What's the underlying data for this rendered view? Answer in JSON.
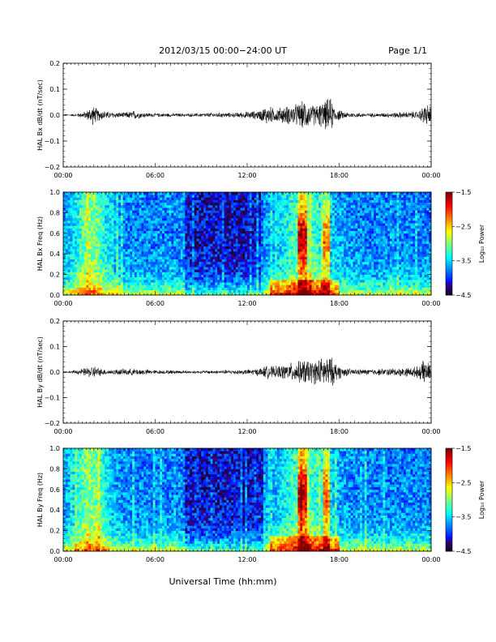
{
  "header": {
    "title": "2012/03/15  00:00−24:00 UT",
    "page": "Page 1/1"
  },
  "footer": {
    "xlabel": "Universal Time (hh:mm)"
  },
  "chart_data": [
    {
      "type": "line",
      "ylabel": "HAL Bx dB/dt (nT/sec)",
      "ylim": [
        -0.2,
        0.2
      ],
      "yticks": [
        0.2,
        0.1,
        0.0,
        -0.1,
        -0.2
      ],
      "ytick_labels": [
        "0.2",
        "0.1",
        "0.0",
        "−0.1",
        "−0.2"
      ],
      "xlim": [
        0,
        24
      ],
      "xtick_labels": [
        "00:00",
        "06:00",
        "12:00",
        "18:00",
        "00:00"
      ],
      "envelope": {
        "x_hours": [
          0,
          0.5,
          1.0,
          1.5,
          1.9,
          2.3,
          3.0,
          4.0,
          4.6,
          5.2,
          6.0,
          7.0,
          8.0,
          9.0,
          10.0,
          11.0,
          12.0,
          12.8,
          13.3,
          13.8,
          14.3,
          14.8,
          15.3,
          15.8,
          16.2,
          16.6,
          17.0,
          17.4,
          17.8,
          18.2,
          18.8,
          19.5,
          20.5,
          21.5,
          22.5,
          23.2,
          23.6,
          24.0
        ],
        "amplitude": [
          0.003,
          0.003,
          0.006,
          0.012,
          0.03,
          0.018,
          0.01,
          0.008,
          0.014,
          0.008,
          0.006,
          0.006,
          0.005,
          0.006,
          0.008,
          0.007,
          0.01,
          0.014,
          0.03,
          0.02,
          0.025,
          0.03,
          0.035,
          0.045,
          0.03,
          0.035,
          0.04,
          0.055,
          0.02,
          0.012,
          0.008,
          0.007,
          0.006,
          0.008,
          0.01,
          0.012,
          0.035,
          0.03
        ]
      }
    },
    {
      "type": "heatmap",
      "ylabel": "HAL Bx Freq (Hz)",
      "ylim": [
        0.0,
        1.0
      ],
      "yticks": [
        0.0,
        0.2,
        0.4,
        0.6,
        0.8,
        1.0
      ],
      "ytick_labels": [
        "0.0",
        "0.2",
        "0.4",
        "0.6",
        "0.8",
        "1.0"
      ],
      "xlim": [
        0,
        24
      ],
      "xtick_labels": [
        "00:00",
        "06:00",
        "12:00",
        "18:00",
        "00:00"
      ],
      "colorbar": {
        "label": "Log₁₀ Power",
        "range": [
          -4.5,
          -1.5
        ],
        "ticks": [
          -1.5,
          -2.5,
          -3.5,
          -4.5
        ],
        "tick_labels": [
          "−1.5",
          "−2.5",
          "−3.5",
          "−4.5"
        ]
      },
      "hotspots_hours": [
        15.6,
        17.2
      ]
    },
    {
      "type": "line",
      "ylabel": "HAL By dB/dt (nT/sec)",
      "ylim": [
        -0.2,
        0.2
      ],
      "yticks": [
        0.2,
        0.1,
        0.0,
        -0.1,
        -0.2
      ],
      "ytick_labels": [
        "0.2",
        "0.1",
        "0.0",
        "−0.1",
        "−0.2"
      ],
      "xlim": [
        0,
        24
      ],
      "xtick_labels": [
        "00:00",
        "06:00",
        "12:00",
        "18:00",
        "00:00"
      ],
      "envelope": {
        "x_hours": [
          0,
          0.5,
          1.0,
          1.5,
          2.0,
          2.5,
          3.0,
          4.0,
          5.0,
          6.0,
          7.0,
          8.0,
          9.0,
          10.0,
          11.0,
          12.0,
          12.8,
          13.3,
          13.8,
          14.3,
          14.8,
          15.3,
          15.8,
          16.2,
          16.6,
          17.0,
          17.4,
          17.8,
          18.2,
          18.8,
          19.5,
          20.5,
          21.5,
          22.5,
          23.2,
          23.6,
          24.0
        ],
        "amplitude": [
          0.003,
          0.004,
          0.008,
          0.014,
          0.02,
          0.01,
          0.008,
          0.01,
          0.01,
          0.006,
          0.006,
          0.005,
          0.005,
          0.006,
          0.007,
          0.008,
          0.012,
          0.02,
          0.018,
          0.022,
          0.028,
          0.032,
          0.04,
          0.035,
          0.04,
          0.045,
          0.05,
          0.03,
          0.015,
          0.01,
          0.009,
          0.01,
          0.012,
          0.014,
          0.018,
          0.04,
          0.02
        ]
      }
    },
    {
      "type": "heatmap",
      "ylabel": "HAL By Freq (Hz)",
      "ylim": [
        0.0,
        1.0
      ],
      "yticks": [
        0.0,
        0.2,
        0.4,
        0.6,
        0.8,
        1.0
      ],
      "ytick_labels": [
        "0.0",
        "0.2",
        "0.4",
        "0.6",
        "0.8",
        "1.0"
      ],
      "xlim": [
        0,
        24
      ],
      "xtick_labels": [
        "00:00",
        "06:00",
        "12:00",
        "18:00",
        "00:00"
      ],
      "colorbar": {
        "label": "Log₁₀ Power",
        "range": [
          -4.5,
          -1.5
        ],
        "ticks": [
          -1.5,
          -2.5,
          -3.5,
          -4.5
        ],
        "tick_labels": [
          "−1.5",
          "−2.5",
          "−3.5",
          "−4.5"
        ]
      },
      "hotspots_hours": [
        15.6,
        17.2
      ]
    }
  ]
}
